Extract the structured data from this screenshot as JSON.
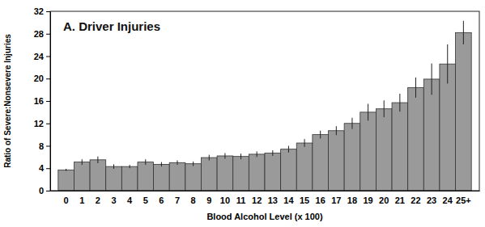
{
  "chart_data": {
    "type": "bar",
    "title": "A. Driver Injuries",
    "x_label": "Blood Alcohol Level (x 100)",
    "y_label": "Ratio of Severe:Nonsevere Injuries",
    "categories": [
      "0",
      "1",
      "2",
      "3",
      "4",
      "5",
      "6",
      "7",
      "8",
      "9",
      "10",
      "11",
      "12",
      "13",
      "14",
      "15",
      "16",
      "17",
      "18",
      "19",
      "20",
      "21",
      "22",
      "23",
      "24",
      "25+"
    ],
    "values": [
      3.7,
      5.1,
      5.5,
      4.3,
      4.3,
      5.1,
      4.7,
      5.0,
      4.8,
      5.9,
      6.2,
      6.1,
      6.5,
      6.7,
      7.4,
      8.5,
      10.0,
      10.7,
      12.0,
      14.0,
      14.6,
      15.7,
      18.4,
      19.9,
      22.6,
      28.2
    ],
    "errors": [
      0.2,
      0.5,
      0.6,
      0.4,
      0.3,
      0.5,
      0.4,
      0.4,
      0.4,
      0.5,
      0.5,
      0.5,
      0.5,
      0.5,
      0.6,
      0.7,
      0.7,
      0.8,
      1.0,
      1.5,
      1.5,
      1.6,
      1.8,
      2.8,
      3.5,
      2.1
    ],
    "color": "#9a9a9a",
    "ylim": [
      0,
      32
    ],
    "yticks": [
      0,
      4,
      8,
      12,
      16,
      20,
      24,
      28,
      32
    ],
    "grid": false
  }
}
